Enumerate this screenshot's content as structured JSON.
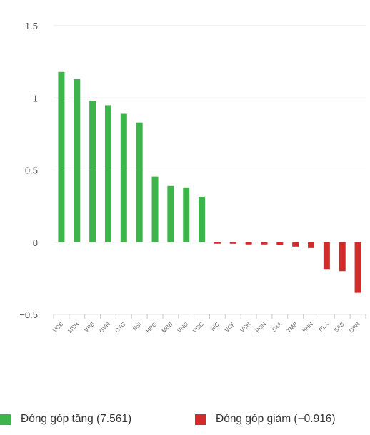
{
  "colors": {
    "increase": "#3db54a",
    "decrease": "#d12b2b",
    "grid": "#e6e6e6",
    "axis_text": "#555555",
    "tick_text": "#666666"
  },
  "chart_data": {
    "type": "bar",
    "categories": [
      "VCB",
      "MSN",
      "VPB",
      "GVR",
      "CTG",
      "SSI",
      "HPG",
      "MBB",
      "VND",
      "VGC",
      "BIC",
      "VCF",
      "VSH",
      "PDN",
      "S4A",
      "TMP",
      "BHN",
      "PLX",
      "SAB",
      "DPR"
    ],
    "values": [
      1.18,
      1.13,
      0.98,
      0.95,
      0.89,
      0.83,
      0.455,
      0.39,
      0.38,
      0.315,
      -0.01,
      -0.01,
      -0.015,
      -0.015,
      -0.02,
      -0.03,
      -0.04,
      -0.185,
      -0.2,
      -0.35
    ],
    "yticks": [
      1.5,
      1,
      0.5,
      0,
      -0.5
    ],
    "ytick_labels": [
      "1.5",
      "1",
      "0.5",
      "0",
      "−0.5"
    ],
    "ylim": [
      -0.5,
      1.5
    ],
    "grid": true,
    "title": "",
    "xlabel": "",
    "ylabel": "",
    "legend_position": "bottom",
    "legend": [
      {
        "label": "Đóng góp tăng  (7.561)",
        "color": "#3db54a"
      },
      {
        "label": "Đóng góp giảm  (−0.916)",
        "color": "#d12b2b"
      }
    ]
  }
}
